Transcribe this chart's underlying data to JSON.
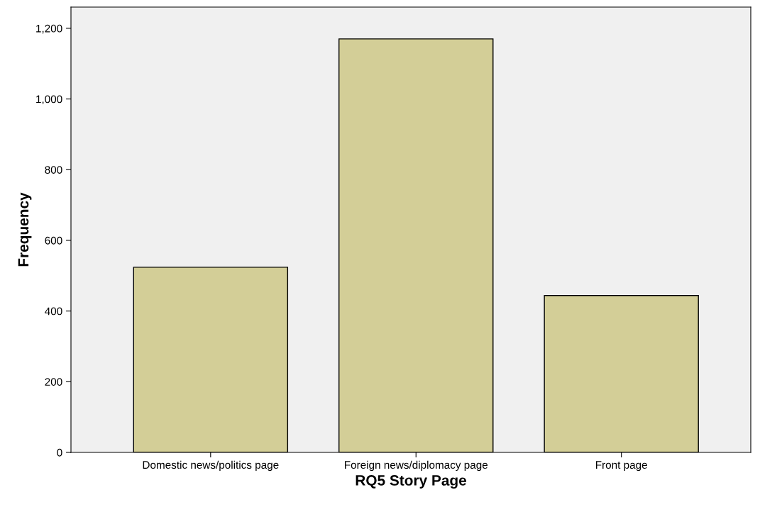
{
  "chart_data": {
    "type": "bar",
    "xlabel": "RQ5 Story Page",
    "ylabel": "Frequency",
    "categories": [
      "Domestic news/politics page",
      "Foreign news/diplomacy page",
      "Front page"
    ],
    "values": [
      524,
      1170,
      444
    ],
    "color": "#d3ce97",
    "ylim": [
      0,
      1260
    ],
    "yticks": [
      0,
      200,
      400,
      600,
      800,
      {
        "value": 1000,
        "label": "1,000"
      },
      {
        "value": 1200,
        "label": "1,200"
      }
    ],
    "grid": false,
    "legend": false
  }
}
